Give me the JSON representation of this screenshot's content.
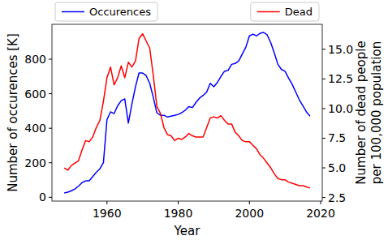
{
  "chart_data": {
    "type": "line",
    "x_label": "Year",
    "y_label": "Number of occurences [K]",
    "y2_label": "Number of dead people\nper 100,000 population",
    "legend": "top",
    "grid": false,
    "x": [
      1948,
      1949,
      1950,
      1951,
      1952,
      1953,
      1954,
      1955,
      1956,
      1957,
      1958,
      1959,
      1960,
      1961,
      1962,
      1963,
      1964,
      1965,
      1966,
      1967,
      1968,
      1969,
      1970,
      1971,
      1972,
      1973,
      1974,
      1975,
      1976,
      1977,
      1978,
      1979,
      1980,
      1981,
      1982,
      1983,
      1984,
      1985,
      1986,
      1987,
      1988,
      1989,
      1990,
      1991,
      1992,
      1993,
      1994,
      1995,
      1996,
      1997,
      1998,
      1999,
      2000,
      2001,
      2002,
      2003,
      2004,
      2005,
      2006,
      2007,
      2008,
      2009,
      2010,
      2011,
      2012,
      2013,
      2014,
      2015,
      2016,
      2017
    ],
    "series": [
      {
        "name": "Occurences",
        "color": "#0000ff",
        "axis": "y",
        "values": [
          25,
          30,
          38,
          48,
          65,
          85,
          95,
          95,
          120,
          145,
          165,
          200,
          450,
          495,
          485,
          530,
          560,
          570,
          430,
          540,
          640,
          720,
          720,
          705,
          660,
          580,
          490,
          475,
          475,
          465,
          470,
          475,
          480,
          490,
          505,
          525,
          520,
          550,
          575,
          590,
          610,
          660,
          640,
          665,
          700,
          730,
          735,
          770,
          775,
          790,
          830,
          870,
          935,
          945,
          935,
          950,
          955,
          940,
          895,
          835,
          770,
          740,
          730,
          690,
          655,
          610,
          565,
          530,
          495,
          470
        ]
      },
      {
        "name": "Dead",
        "color": "#ff0000",
        "axis": "y2",
        "values": [
          5.0,
          4.8,
          5.2,
          5.4,
          5.6,
          6.5,
          7.3,
          7.2,
          7.6,
          8.4,
          9.0,
          10.6,
          12.6,
          13.5,
          12.0,
          12.6,
          13.6,
          12.6,
          13.9,
          13.5,
          14.0,
          15.9,
          16.3,
          15.7,
          15.1,
          12.8,
          10.2,
          9.6,
          8.4,
          7.8,
          7.7,
          7.3,
          7.5,
          7.4,
          7.6,
          7.9,
          7.7,
          7.6,
          7.6,
          7.6,
          8.4,
          9.2,
          9.3,
          9.2,
          9.4,
          9.0,
          8.7,
          8.7,
          8.0,
          7.7,
          7.3,
          7.2,
          7.2,
          6.9,
          6.6,
          6.1,
          5.8,
          5.4,
          5.0,
          4.5,
          4.1,
          4.0,
          4.0,
          3.8,
          3.7,
          3.6,
          3.5,
          3.5,
          3.4,
          3.3
        ]
      }
    ],
    "xlim": [
      1944.55,
      2020.45
    ],
    "xticks": [
      1960,
      1980,
      2000,
      2020
    ],
    "ylim": [
      -22,
      1002
    ],
    "yticks": [
      0,
      200,
      400,
      600,
      800
    ],
    "y2lim": [
      2.2,
      17.1
    ],
    "y2ticks": [
      2.5,
      {
        "value": 5,
        "label": "5.0"
      },
      7.5,
      {
        "value": 10,
        "label": "10.0"
      },
      12.5,
      {
        "value": 15,
        "label": "15.0"
      }
    ]
  }
}
